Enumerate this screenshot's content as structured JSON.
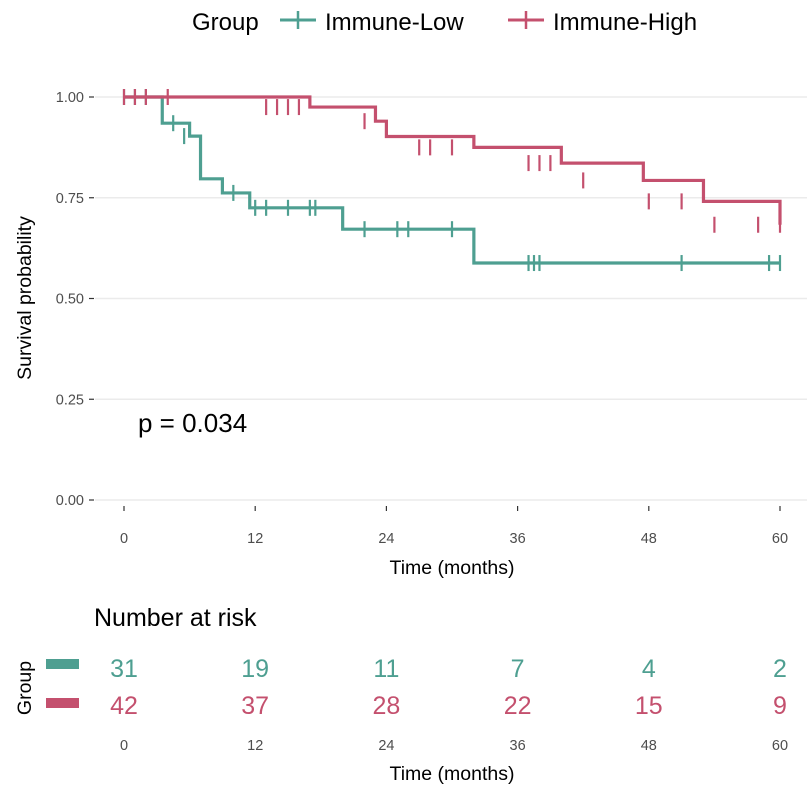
{
  "colors": {
    "low": "#4E9F91",
    "high": "#C4506E",
    "grid": "#EBEBEB",
    "text": "#000000",
    "tick_text": "#4D4D4D"
  },
  "legend": {
    "title": "Group",
    "placement": "top",
    "items": [
      "Immune-Low",
      "Immune-High"
    ]
  },
  "annotation": {
    "pvalue": "p = 0.034"
  },
  "chart_data": {
    "type": "line",
    "title": "",
    "xlabel": "Time (months)",
    "ylabel": "Survival probability",
    "xlim": [
      0,
      60
    ],
    "ylim": [
      0,
      1
    ],
    "x_ticks": [
      "0",
      "12",
      "24",
      "36",
      "48",
      "60"
    ],
    "y_ticks": [
      "0.00",
      "0.25",
      "0.50",
      "0.75",
      "1.00"
    ],
    "grid": true,
    "series": [
      {
        "name": "Immune-Low",
        "step_x": [
          0,
          3,
          3.5,
          5,
          6,
          6.5,
          7,
          8,
          9,
          11,
          11.5,
          20,
          32,
          60
        ],
        "step_y": [
          1.0,
          1.0,
          0.935,
          0.935,
          0.903,
          0.903,
          0.797,
          0.797,
          0.762,
          0.762,
          0.725,
          0.672,
          0.588,
          0.588
        ],
        "censor_x": [
          0,
          1,
          2,
          4.5,
          5.5,
          10,
          12,
          13,
          15,
          17,
          17.5,
          22,
          25,
          26,
          30,
          37,
          37.5,
          38,
          51,
          59,
          60
        ],
        "censor_y": [
          1.0,
          1.0,
          1.0,
          0.935,
          0.903,
          0.762,
          0.725,
          0.725,
          0.725,
          0.725,
          0.725,
          0.672,
          0.672,
          0.672,
          0.672,
          0.588,
          0.588,
          0.588,
          0.588,
          0.588,
          0.588
        ]
      },
      {
        "name": "Immune-High",
        "step_x": [
          0,
          12.5,
          17,
          23,
          24,
          32,
          40,
          47.5,
          53,
          60
        ],
        "step_y": [
          1.0,
          1.0,
          0.975,
          0.94,
          0.902,
          0.875,
          0.836,
          0.793,
          0.741,
          0.683
        ],
        "censor_x": [
          0,
          1,
          2,
          4,
          13,
          14,
          15,
          16,
          22,
          27,
          28,
          30,
          37,
          38,
          39,
          42,
          48,
          51,
          54,
          58,
          60
        ],
        "censor_y": [
          1.0,
          1.0,
          1.0,
          1.0,
          0.975,
          0.975,
          0.975,
          0.975,
          0.94,
          0.875,
          0.875,
          0.875,
          0.836,
          0.836,
          0.836,
          0.793,
          0.741,
          0.741,
          0.683,
          0.683,
          0.683
        ]
      }
    ]
  },
  "risk_table": {
    "title": "Number at risk",
    "ylabel": "Group",
    "xlabel": "Time (months)",
    "times": [
      "0",
      "12",
      "24",
      "36",
      "48",
      "60"
    ],
    "low": [
      "31",
      "19",
      "11",
      "7",
      "4",
      "2"
    ],
    "high": [
      "42",
      "37",
      "28",
      "22",
      "15",
      "9"
    ]
  }
}
